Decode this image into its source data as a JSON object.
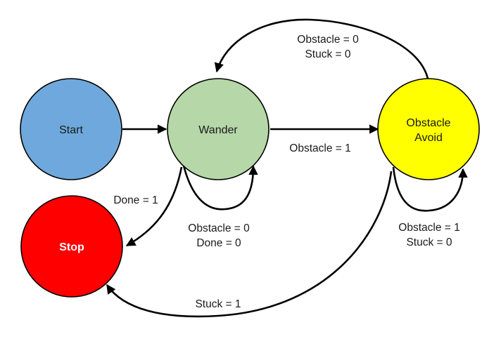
{
  "diagram": {
    "states": {
      "start": {
        "label": "Start",
        "color": "#6fa8dc"
      },
      "wander": {
        "label": "Wander",
        "color": "#b6d7a8"
      },
      "avoid": {
        "lines": [
          "Obstacle",
          "Avoid"
        ],
        "color": "#ffff00"
      },
      "stop": {
        "label": "Stop",
        "color": "#ff0000"
      }
    },
    "transitions": {
      "avoid_to_wander": [
        "Obstacle = 0",
        "Stuck = 0"
      ],
      "wander_to_avoid": [
        "Obstacle = 1"
      ],
      "wander_to_stop": [
        "Done = 1"
      ],
      "wander_self": [
        "Obstacle = 0",
        "Done = 0"
      ],
      "avoid_self": [
        "Obstacle = 1",
        "Stuck = 0"
      ],
      "avoid_to_stop": [
        "Stuck = 1"
      ]
    }
  }
}
